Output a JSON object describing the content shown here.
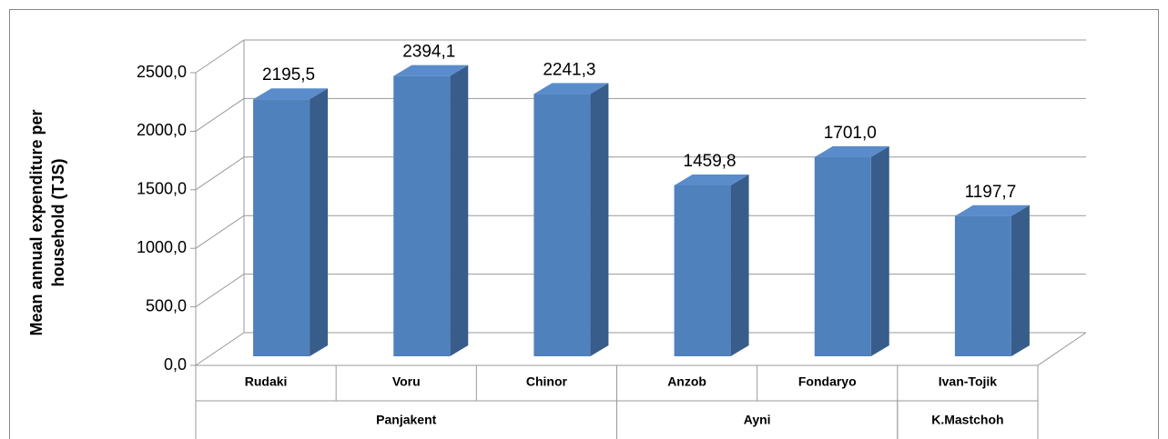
{
  "chart_data": {
    "type": "bar3d",
    "y_label": "Mean annual expenditure per household (TJS)",
    "categories": [
      "Rudaki",
      "Voru",
      "Chinor",
      "Anzob",
      "Fondaryo",
      "Ivan-Tojik"
    ],
    "groups": [
      {
        "name": "Panjakent",
        "count": 3
      },
      {
        "name": "Ayni",
        "count": 2
      },
      {
        "name": "K.Mastchoh",
        "count": 1
      }
    ],
    "values": [
      2195.5,
      2394.1,
      2241.3,
      1459.8,
      1701.0,
      1197.7
    ],
    "value_labels": [
      "2195,5",
      "2394,1",
      "2241,3",
      "1459,8",
      "1701,0",
      "1197,7"
    ],
    "color": "#4f81bd",
    "side_color": "#385d8a",
    "top_color": "#5a8ccb",
    "ylim": [
      0,
      2500
    ],
    "yticks": [
      {
        "value": 0,
        "label": "0,0"
      },
      {
        "value": 500,
        "label": "500,0"
      },
      {
        "value": 1000,
        "label": "1000,0"
      },
      {
        "value": 1500,
        "label": "1500,0"
      },
      {
        "value": 2000,
        "label": "2000,0"
      },
      {
        "value": 2500,
        "label": "2500,0"
      }
    ],
    "grid": true
  }
}
